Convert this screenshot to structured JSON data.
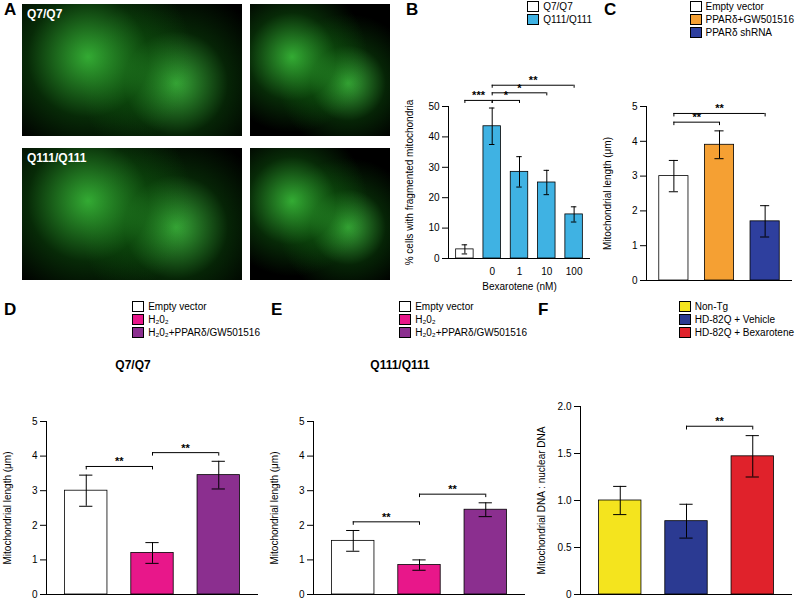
{
  "chart_data": [
    {
      "type": "image",
      "panel": "A",
      "labels": [
        "Q7/Q7",
        "Q111/Q111"
      ]
    },
    {
      "type": "bar",
      "panel": "B",
      "legend": "top",
      "categories": [
        null,
        "0",
        "1",
        "10",
        "100"
      ],
      "x_label": "Bexarotene (nM)",
      "y_label": "% cells with fragmented mitochondria",
      "ylim": [
        0,
        50
      ],
      "yticks": [
        0,
        10,
        20,
        30,
        40,
        50
      ],
      "series": [
        {
          "name": "Q7/Q7",
          "color": "#ffffff",
          "values": [
            3,
            null,
            null,
            null,
            null
          ],
          "errors": [
            1.5,
            null,
            null,
            null,
            null
          ]
        },
        {
          "name": "Q111/Q111",
          "color": "#3fb2e3",
          "values": [
            null,
            43.5,
            28.5,
            25,
            14.5
          ],
          "errors": [
            null,
            6,
            5,
            4,
            2.5
          ]
        }
      ],
      "significance": [
        {
          "from": 0,
          "to": 1,
          "label": "***"
        },
        {
          "from": 1,
          "to": 2,
          "label": "*"
        },
        {
          "from": 1,
          "to": 3,
          "label": "*"
        },
        {
          "from": 1,
          "to": 4,
          "label": "**"
        }
      ]
    },
    {
      "type": "bar",
      "panel": "C",
      "legend": "top",
      "categories": [
        null,
        null,
        null
      ],
      "y_label": "Mitochondrial length (μm)",
      "ylim": [
        0,
        5
      ],
      "yticks": [
        0,
        1,
        2,
        3,
        4,
        5
      ],
      "series": [
        {
          "name": "Empty vector",
          "color": "#ffffff",
          "values": [
            3.0,
            null,
            null
          ],
          "errors": [
            0.45,
            null,
            null
          ]
        },
        {
          "name": "PPARδ+GW501516",
          "color": "#f5a033",
          "values": [
            null,
            3.9,
            null
          ],
          "errors": [
            null,
            0.4,
            null
          ]
        },
        {
          "name": "PPARδ shRNA",
          "color": "#2e3f9e",
          "values": [
            null,
            null,
            1.7
          ],
          "errors": [
            null,
            null,
            0.45
          ]
        }
      ],
      "significance": [
        {
          "from": 0,
          "to": 1,
          "label": "**"
        },
        {
          "from": 0,
          "to": 2,
          "label": "**"
        }
      ]
    },
    {
      "type": "bar",
      "panel": "D",
      "title": "Q7/Q7",
      "legend": "top",
      "categories": [
        null,
        null,
        null
      ],
      "y_label": "Mitochondrial length (μm)",
      "ylim": [
        0,
        5
      ],
      "yticks": [
        0,
        1,
        2,
        3,
        4,
        5
      ],
      "series": [
        {
          "name": "Empty vector",
          "color": "#ffffff",
          "values": [
            3.0,
            null,
            null
          ],
          "errors": [
            0.45,
            null,
            null
          ]
        },
        {
          "name": "H₂0₂",
          "color": "#e8178a",
          "values": [
            null,
            1.2,
            null
          ],
          "errors": [
            null,
            0.3,
            null
          ]
        },
        {
          "name": "H₂0₂+PPARδ/GW501516",
          "color": "#8b2f8f",
          "values": [
            null,
            null,
            3.45
          ],
          "errors": [
            null,
            null,
            0.4
          ]
        }
      ],
      "significance": [
        {
          "from": 0,
          "to": 1,
          "label": "**"
        },
        {
          "from": 1,
          "to": 2,
          "label": "**"
        }
      ]
    },
    {
      "type": "bar",
      "panel": "E",
      "title": "Q111/Q111",
      "legend": "top",
      "categories": [
        null,
        null,
        null
      ],
      "y_label": "Mitochondrial length (μm)",
      "ylim": [
        0,
        5
      ],
      "yticks": [
        0,
        1,
        2,
        3,
        4,
        5
      ],
      "series": [
        {
          "name": "Empty vector",
          "color": "#ffffff",
          "values": [
            1.55,
            null,
            null
          ],
          "errors": [
            0.3,
            null,
            null
          ]
        },
        {
          "name": "H₂0₂",
          "color": "#e8178a",
          "values": [
            null,
            0.85,
            null
          ],
          "errors": [
            null,
            0.15,
            null
          ]
        },
        {
          "name": "H₂0₂+PPARδ/GW501516",
          "color": "#8b2f8f",
          "values": [
            null,
            null,
            2.45
          ],
          "errors": [
            null,
            null,
            0.2
          ]
        }
      ],
      "significance": [
        {
          "from": 0,
          "to": 1,
          "label": "**"
        },
        {
          "from": 1,
          "to": 2,
          "label": "**"
        }
      ]
    },
    {
      "type": "bar",
      "panel": "F",
      "legend": "top",
      "categories": [
        null,
        null,
        null
      ],
      "y_label": "Mitochondrial DNA : nuclear DNA",
      "ylim": [
        0,
        2
      ],
      "yticks": [
        0,
        0.5,
        {
          "value": 1,
          "label": "1.0"
        },
        1.5,
        {
          "value": 2,
          "label": "2.0"
        }
      ],
      "series": [
        {
          "name": "Non-Tg",
          "color": "#f4e41e",
          "values": [
            1.0,
            null,
            null
          ],
          "errors": [
            0.15,
            null,
            null
          ]
        },
        {
          "name": "HD-82Q + Vehicle",
          "color": "#2b3a92",
          "values": [
            null,
            0.78,
            null
          ],
          "errors": [
            null,
            0.18,
            null
          ]
        },
        {
          "name": "HD-82Q + Bexarotene",
          "color": "#e0222b",
          "values": [
            null,
            null,
            1.47
          ],
          "errors": [
            null,
            null,
            0.22
          ]
        }
      ],
      "significance": [
        {
          "from": 1,
          "to": 2,
          "label": "**"
        }
      ]
    }
  ]
}
